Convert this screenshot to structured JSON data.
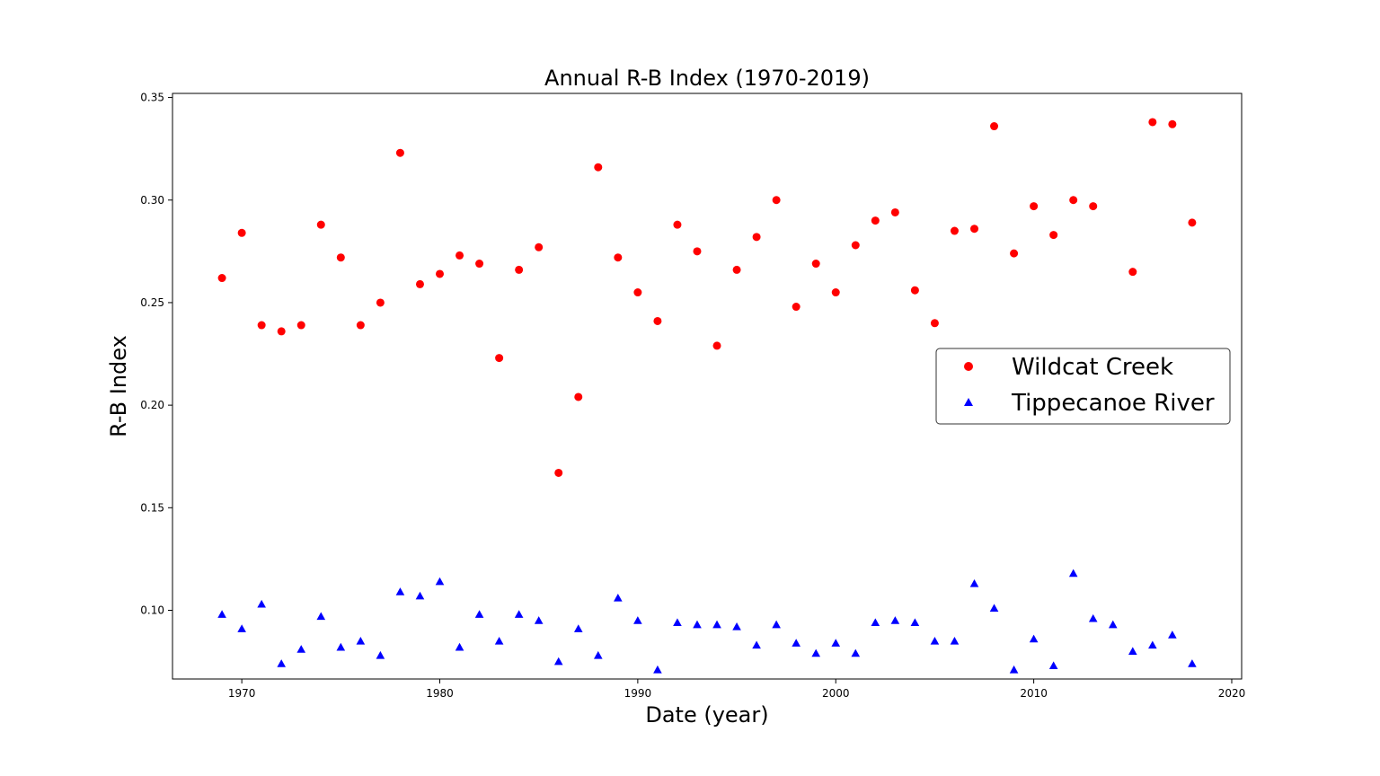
{
  "chart_data": {
    "type": "scatter",
    "title": "Annual R-B Index (1970-2019)",
    "xlabel": "Date (year)",
    "ylabel": "R-B Index",
    "xlim": [
      1966.5,
      2020.5
    ],
    "ylim": [
      0.0665,
      0.352
    ],
    "xticks": [
      1970,
      1980,
      1990,
      2000,
      2010,
      2020
    ],
    "xtick_labels": [
      "1970",
      "1980",
      "1990",
      "2000",
      "2010",
      "2020"
    ],
    "yticks": [
      0.1,
      0.15,
      0.2,
      0.25,
      0.3,
      0.35
    ],
    "ytick_labels": [
      "0.10",
      "0.15",
      "0.20",
      "0.25",
      "0.30",
      "0.35"
    ],
    "grid": false,
    "legend_position": "center-right",
    "x": [
      1969,
      1970,
      1971,
      1972,
      1973,
      1974,
      1975,
      1976,
      1977,
      1978,
      1979,
      1980,
      1981,
      1982,
      1983,
      1984,
      1985,
      1986,
      1987,
      1988,
      1989,
      1990,
      1991,
      1992,
      1993,
      1994,
      1995,
      1996,
      1997,
      1998,
      1999,
      2000,
      2001,
      2002,
      2003,
      2004,
      2005,
      2006,
      2007,
      2008,
      2009,
      2010,
      2011,
      2012,
      2013,
      2014,
      2015,
      2016,
      2017,
      2018
    ],
    "series": [
      {
        "name": "Wildcat Creek",
        "marker": "circle",
        "color": "#ff0000",
        "values": [
          0.262,
          0.284,
          0.239,
          0.236,
          0.239,
          0.288,
          0.272,
          0.239,
          0.25,
          0.323,
          0.259,
          0.264,
          0.273,
          0.269,
          0.223,
          0.266,
          0.277,
          0.167,
          0.204,
          0.316,
          0.272,
          0.255,
          0.241,
          0.288,
          0.275,
          0.229,
          0.266,
          0.282,
          0.3,
          0.248,
          0.269,
          0.255,
          0.278,
          0.29,
          0.294,
          0.256,
          0.24,
          0.285,
          0.286,
          0.336,
          0.274,
          0.297,
          0.283,
          0.3,
          0.297,
          null,
          0.265,
          0.338,
          0.337,
          0.289
        ]
      },
      {
        "name": "Tippecanoe River",
        "marker": "triangle",
        "color": "#0000ff",
        "values": [
          0.098,
          0.091,
          0.103,
          0.074,
          0.081,
          0.097,
          0.082,
          0.085,
          0.078,
          0.109,
          0.107,
          0.114,
          0.082,
          0.098,
          0.085,
          0.098,
          0.095,
          0.075,
          0.091,
          0.078,
          0.106,
          0.095,
          0.071,
          0.094,
          0.093,
          0.093,
          0.092,
          0.083,
          0.093,
          0.084,
          0.079,
          0.084,
          0.079,
          0.094,
          0.095,
          0.094,
          0.085,
          0.085,
          0.113,
          0.101,
          0.071,
          0.086,
          0.073,
          0.118,
          0.096,
          0.093,
          0.08,
          0.083,
          0.088,
          0.074
        ]
      }
    ]
  }
}
